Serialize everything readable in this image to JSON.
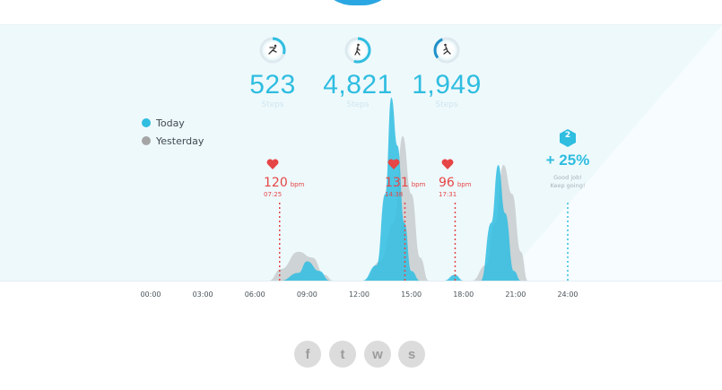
{
  "stats": [
    {
      "icon": "skating-icon",
      "value": "523",
      "unit": "Steps",
      "progress": 0.3
    },
    {
      "icon": "walking-icon",
      "value": "4,821",
      "unit": "Steps",
      "progress": 0.55
    },
    {
      "icon": "running-icon",
      "value": "1,949",
      "unit": "Steps",
      "progress": 0.3
    }
  ],
  "legend": [
    {
      "label": "Today",
      "color": "#2fbde0"
    },
    {
      "label": "Yesterday",
      "color": "#a5a5a5"
    }
  ],
  "heart_markers": [
    {
      "bpm": "120",
      "unit": "bpm",
      "time": "07:25",
      "hour": 7.42
    },
    {
      "bpm": "131",
      "unit": "bpm",
      "time": "14:38",
      "hour": 14.63
    },
    {
      "bpm": "96",
      "unit": "bpm",
      "time": "17:31",
      "hour": 17.52
    }
  ],
  "goal": {
    "badge": "2",
    "percent": "+ 25%",
    "message_line1": "Good job!",
    "message_line2": "Keep going!",
    "hour": 24
  },
  "chart_data": {
    "type": "area",
    "x_ticks": [
      "00:00",
      "03:00",
      "06:00",
      "09:00",
      "12:00",
      "15:00",
      "18:00",
      "21:00",
      "24:00"
    ],
    "xlim": [
      0,
      24
    ],
    "series": [
      {
        "name": "Today",
        "color": "#2fbde0",
        "points": [
          [
            7.5,
            0
          ],
          [
            8.5,
            0.04
          ],
          [
            9,
            0.1
          ],
          [
            9.7,
            0.05
          ],
          [
            10.3,
            0
          ],
          [
            12.2,
            0
          ],
          [
            13.0,
            0.08
          ],
          [
            13.5,
            0.45
          ],
          [
            13.85,
            0.95
          ],
          [
            14.2,
            0.7
          ],
          [
            14.6,
            0.3
          ],
          [
            15.0,
            0.05
          ],
          [
            15.5,
            0
          ],
          [
            16.9,
            0
          ],
          [
            17.5,
            0.03
          ],
          [
            18.0,
            0
          ],
          [
            19.0,
            0
          ],
          [
            19.6,
            0.3
          ],
          [
            20.0,
            0.6
          ],
          [
            20.4,
            0.35
          ],
          [
            20.9,
            0.05
          ],
          [
            21.3,
            0
          ]
        ]
      },
      {
        "name": "Yesterday",
        "color": "#c5cacd",
        "points": [
          [
            6.8,
            0
          ],
          [
            7.5,
            0.06
          ],
          [
            8.5,
            0.15
          ],
          [
            9.3,
            0.12
          ],
          [
            10.0,
            0.03
          ],
          [
            10.5,
            0
          ],
          [
            12.3,
            0
          ],
          [
            13.2,
            0.1
          ],
          [
            14.0,
            0.3
          ],
          [
            14.5,
            0.75
          ],
          [
            15.0,
            0.45
          ],
          [
            15.5,
            0.12
          ],
          [
            16.0,
            0
          ],
          [
            18.5,
            0
          ],
          [
            19.3,
            0.08
          ],
          [
            19.8,
            0.3
          ],
          [
            20.3,
            0.6
          ],
          [
            20.8,
            0.45
          ],
          [
            21.3,
            0.15
          ],
          [
            21.7,
            0
          ]
        ]
      }
    ]
  },
  "social": [
    {
      "icon": "facebook-icon",
      "glyph": "f"
    },
    {
      "icon": "twitter-icon",
      "glyph": "t"
    },
    {
      "icon": "wechat-icon",
      "glyph": "w"
    },
    {
      "icon": "weibo-icon",
      "glyph": "s"
    }
  ]
}
